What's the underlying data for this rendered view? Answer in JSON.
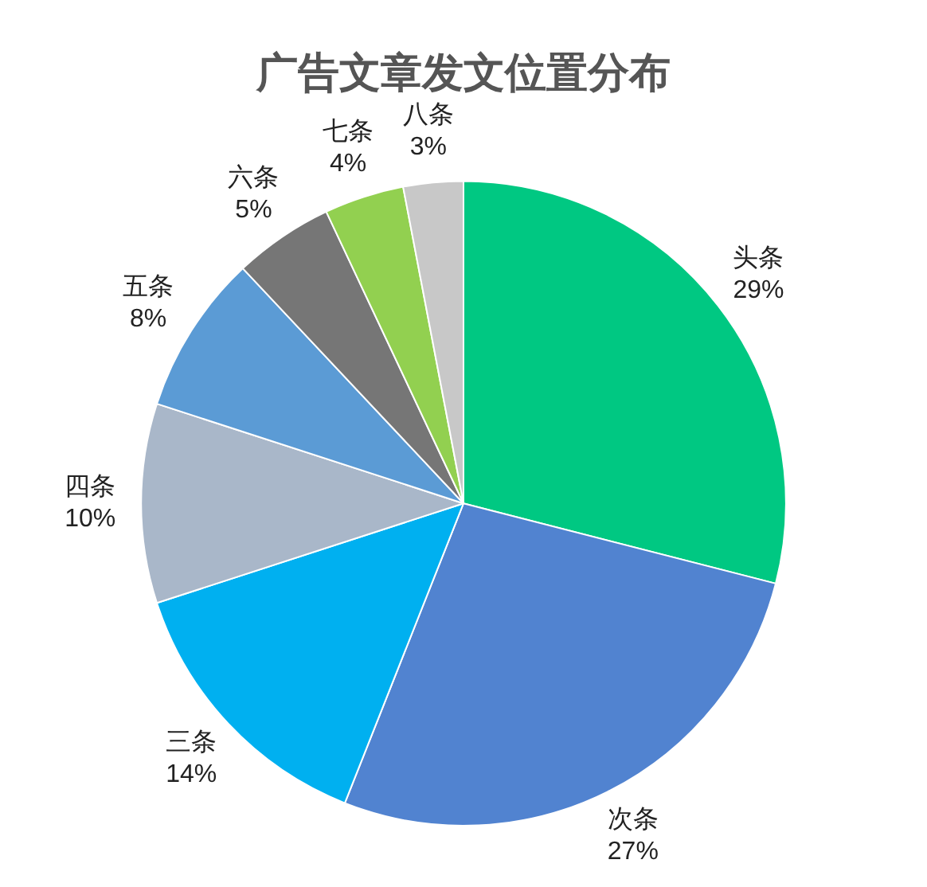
{
  "chart_data": {
    "type": "pie",
    "title": "广告文章发文位置分布",
    "categories": [
      "头条",
      "次条",
      "三条",
      "四条",
      "五条",
      "六条",
      "七条",
      "八条"
    ],
    "values": [
      29,
      27,
      14,
      10,
      8,
      5,
      4,
      3
    ],
    "value_labels": [
      "29%",
      "27%",
      "14%",
      "10%",
      "8%",
      "5%",
      "4%",
      "3%"
    ],
    "colors": [
      "#00c882",
      "#5183d0",
      "#00b0f0",
      "#a9b7c9",
      "#5b9bd5",
      "#767676",
      "#92d050",
      "#c8c8c8"
    ],
    "legend": false
  }
}
